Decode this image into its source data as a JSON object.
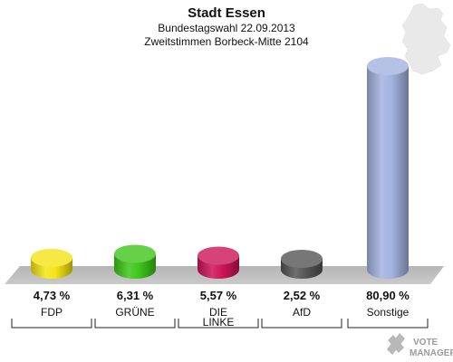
{
  "header": {
    "title": "Stadt Essen",
    "subtitle1": "Bundestagswahl 22.09.2013",
    "subtitle2": "Zweitstimmen Borbeck-Mitte 2104"
  },
  "chart_data": {
    "type": "bar",
    "title": "Stadt Essen",
    "subtitle": [
      "Bundestagswahl 22.09.2013",
      "Zweitstimmen Borbeck-Mitte 2104"
    ],
    "categories": [
      [
        "FDP"
      ],
      [
        "GRÜNE"
      ],
      [
        "DIE",
        "LINKE"
      ],
      [
        "AfD"
      ],
      [
        "Sonstige"
      ]
    ],
    "values": [
      4.73,
      6.31,
      5.57,
      2.52,
      80.9
    ],
    "value_labels": [
      "4,73 %",
      "6,31 %",
      "5,57 %",
      "2,52 %",
      "80,90 %"
    ],
    "colors": [
      "#f5e416",
      "#3ec61a",
      "#cc1455",
      "#555555",
      "#a3b3e0"
    ],
    "ylim": [
      0,
      100
    ],
    "xlabel": "",
    "ylabel": "",
    "grid": false,
    "legend": "none"
  },
  "logo": {
    "text1": "VOTE",
    "text2": "MANAGER"
  },
  "icons": {
    "map": "germany-map-icon",
    "logo": "vote-manager-logo-icon"
  }
}
